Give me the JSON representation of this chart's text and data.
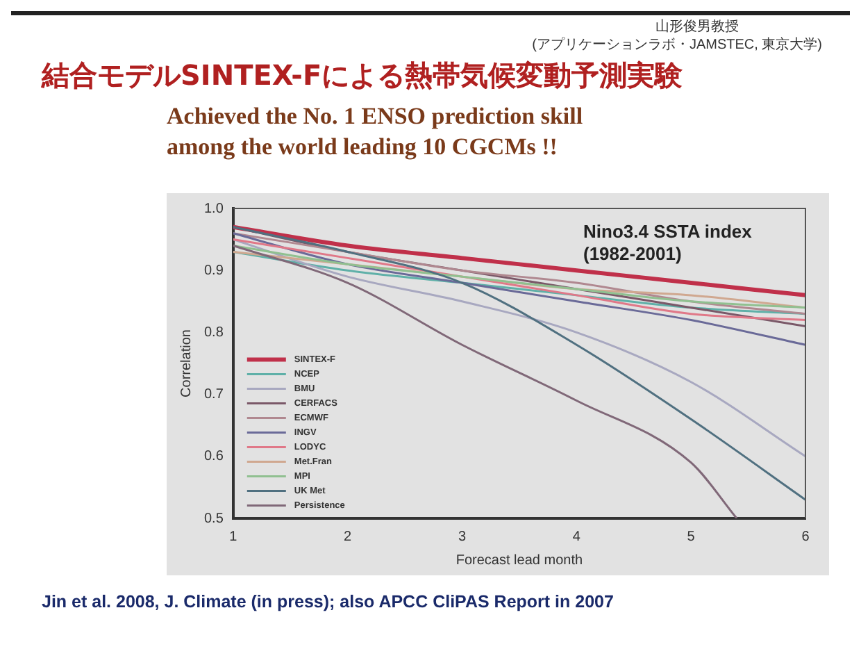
{
  "chart_data": {
    "type": "line",
    "title": "結合モデルSINTEX-Fによる熱帯気候変動予測実験",
    "subtitle": "Achieved the No. 1 ENSO prediction skill\namong the world leading 10 CGCMs !!",
    "xlabel": "Forecast lead month",
    "ylabel": "Correlation",
    "annotations": [
      "山形俊男教授",
      "(アプリケーションラボ・JAMSTEC, 東京大学)",
      "Nino3.4 SSTA index\n(1982-2001)",
      "Jin et al. 2008, J. Climate (in press); also APCC CliPAS Report in 2007"
    ],
    "x": [
      1,
      2,
      3,
      4,
      5,
      6
    ],
    "series": [
      {
        "name": "SINTEX-F",
        "color": "#c0304a",
        "values": [
          0.97,
          0.94,
          0.92,
          0.9,
          0.88,
          0.86
        ]
      },
      {
        "name": "NCEP",
        "color": "#5fb0a8",
        "values": [
          0.93,
          0.9,
          0.88,
          0.86,
          0.84,
          0.83
        ]
      },
      {
        "name": "BMU",
        "color": "#a8a8c0",
        "values": [
          0.95,
          0.89,
          0.85,
          0.8,
          0.72,
          0.6
        ]
      },
      {
        "name": "CERFACS",
        "color": "#7a5868",
        "values": [
          0.97,
          0.93,
          0.9,
          0.87,
          0.84,
          0.81
        ]
      },
      {
        "name": "ECMWF",
        "color": "#b08890",
        "values": [
          0.96,
          0.93,
          0.9,
          0.88,
          0.85,
          0.83
        ]
      },
      {
        "name": "INGV",
        "color": "#6a6a98",
        "values": [
          0.96,
          0.91,
          0.88,
          0.85,
          0.82,
          0.78
        ]
      },
      {
        "name": "LODYC",
        "color": "#e07888",
        "values": [
          0.95,
          0.92,
          0.89,
          0.86,
          0.83,
          0.82
        ]
      },
      {
        "name": "Met.Fran",
        "color": "#d0a890",
        "values": [
          0.93,
          0.91,
          0.89,
          0.87,
          0.86,
          0.84
        ]
      },
      {
        "name": "MPI",
        "color": "#90c090",
        "values": [
          0.94,
          0.91,
          0.89,
          0.87,
          0.85,
          0.84
        ]
      },
      {
        "name": "UK Met",
        "color": "#507080",
        "values": [
          0.97,
          0.93,
          0.88,
          0.78,
          0.66,
          0.53
        ]
      },
      {
        "name": "Persistence",
        "color": "#806878",
        "x": [
          1,
          2,
          3,
          4,
          5,
          5.4
        ],
        "values": [
          0.94,
          0.88,
          0.78,
          0.69,
          0.59,
          0.5
        ]
      }
    ],
    "xlim": [
      1,
      6
    ],
    "xticks": [
      1,
      2,
      3,
      4,
      5,
      6
    ],
    "ylim": [
      0.5,
      1.0
    ],
    "yticks": [
      0.5,
      0.6,
      0.7,
      0.8,
      0.9,
      {
        "value": 1.0,
        "label": "1.0"
      }
    ],
    "legend": "bottom left",
    "grid": false
  }
}
